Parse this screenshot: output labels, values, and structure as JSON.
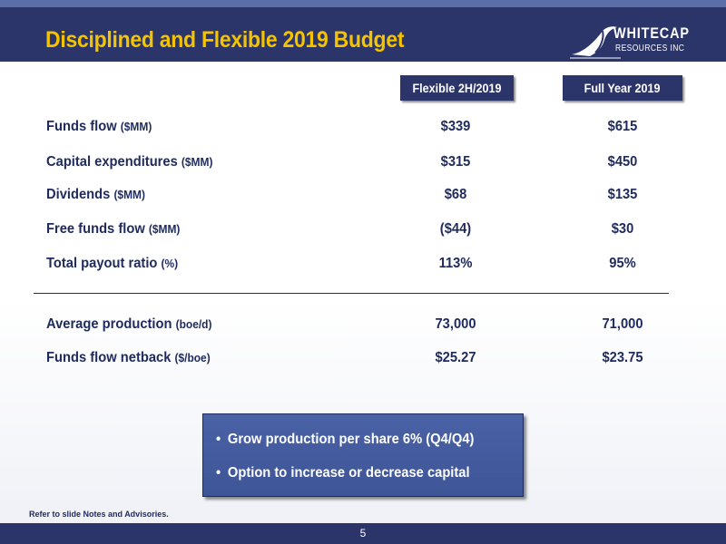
{
  "slide": {
    "title": "Disciplined and Flexible 2019 Budget",
    "page_number": "5",
    "footnote": "Refer to slide Notes and Advisories."
  },
  "logo": {
    "name": "WHITECAP",
    "subtitle": "RESOURCES INC"
  },
  "table": {
    "columns": [
      "Flexible 2H/2019",
      "Full Year 2019"
    ],
    "rows": [
      {
        "label": "Funds flow",
        "unit": "($MM)",
        "flexible": "$339",
        "full_year": "$615"
      },
      {
        "label": "Capital expenditures",
        "unit": "($MM)",
        "flexible": "$315",
        "full_year": "$450"
      },
      {
        "label": "Dividends",
        "unit": "($MM)",
        "flexible": "$68",
        "full_year": "$135"
      },
      {
        "label": "Free funds flow",
        "unit": "($MM)",
        "flexible": "($44)",
        "full_year": "$30"
      },
      {
        "label": "Total payout ratio",
        "unit": "(%)",
        "flexible": "113%",
        "full_year": "95%"
      },
      {
        "label": "Average production",
        "unit": "(boe/d)",
        "flexible": "73,000",
        "full_year": "71,000"
      },
      {
        "label": "Funds flow netback",
        "unit": "($/boe)",
        "flexible": "$25.27",
        "full_year": "$23.75"
      }
    ]
  },
  "callout": {
    "bullets": [
      "Grow production per share 6% (Q4/Q4)",
      "Option to increase or decrease capital"
    ]
  },
  "colors": {
    "navy": "#2c3569",
    "title_yellow": "#f5c400",
    "text_navy": "#1f2a5e",
    "callout_blue": "#4a62a6"
  }
}
